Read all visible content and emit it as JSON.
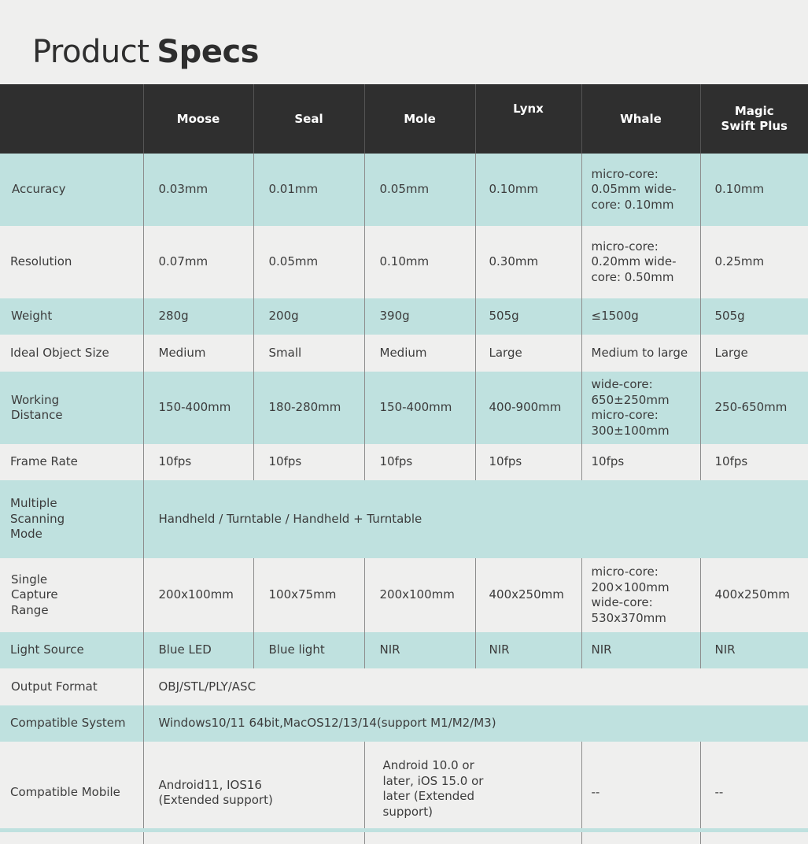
{
  "title": {
    "light": "Product",
    "bold": "Specs"
  },
  "columns": [
    "",
    "Moose",
    "Seal",
    "Mole",
    "Lynx",
    "Whale",
    "Magic Swift Plus"
  ],
  "rows": {
    "accuracy": {
      "label": "Accuracy",
      "values": [
        "0.03mm",
        "0.01mm",
        "0.05mm",
        "0.10mm",
        "micro-core: 0.05mm wide-core: 0.10mm",
        "0.10mm"
      ]
    },
    "resolution": {
      "label": "Resolution",
      "values": [
        "0.07mm",
        "0.05mm",
        "0.10mm",
        "0.30mm",
        "micro-core: 0.20mm wide-core: 0.50mm",
        "0.25mm"
      ]
    },
    "weight": {
      "label": "Weight",
      "values": [
        "280g",
        "200g",
        "390g",
        "505g",
        "≤1500g",
        "505g"
      ]
    },
    "ideal_object_size": {
      "label": "Ideal Object Size",
      "values": [
        "Medium",
        "Small",
        "Medium",
        "Large",
        "Medium to large",
        "Large"
      ]
    },
    "working_distance": {
      "label": "Working Distance",
      "values": [
        "150-400mm",
        "180-280mm",
        "150-400mm",
        "400-900mm",
        "wide-core: 650±250mm micro-core: 300±100mm",
        "250-650mm"
      ]
    },
    "frame_rate": {
      "label": "Frame Rate",
      "values": [
        "10fps",
        "10fps",
        "10fps",
        "10fps",
        "10fps",
        "10fps"
      ]
    },
    "multiple_scanning_mode": {
      "label": "Multiple Scanning Mode",
      "value": "Handheld / Turntable / Handheld + Turntable"
    },
    "single_capture_range": {
      "label": "Single Capture Range",
      "values": [
        "200x100mm",
        "100x75mm",
        "200x100mm",
        "400x250mm",
        "micro-core: 200×100mm wide-core: 530x370mm",
        "400x250mm"
      ]
    },
    "light_source": {
      "label": "Light Source",
      "values": [
        "Blue LED",
        "Blue light",
        "NIR",
        "NIR",
        "NIR",
        "NIR"
      ]
    },
    "output_format": {
      "label": "Output Format",
      "value": "OBJ/STL/PLY/ASC"
    },
    "compatible_system": {
      "label": "Compatible System",
      "value": "Windows10/11 64bit,MacOS12/13/14(support M1/M2/M3)"
    },
    "compatible_mobile": {
      "label": "Compatible Mobile",
      "values": [
        "Android11, IOS16 (Extended support)",
        "Android 10.0 or later, iOS 15.0 or later (Extended support)",
        "--",
        "--"
      ]
    }
  }
}
